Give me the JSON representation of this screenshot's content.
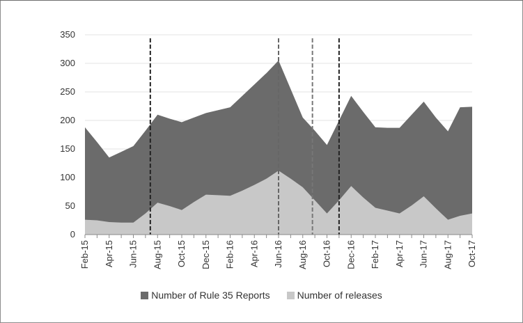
{
  "chart_data": {
    "type": "area",
    "categories": [
      "Feb-15",
      "Mar-15",
      "Apr-15",
      "May-15",
      "Jun-15",
      "Jul-15",
      "Aug-15",
      "Sep-15",
      "Oct-15",
      "Nov-15",
      "Dec-15",
      "Jan-16",
      "Feb-16",
      "Mar-16",
      "Apr-16",
      "May-16",
      "Jun-16",
      "Jul-16",
      "Aug-16",
      "Sep-16",
      "Oct-16",
      "Nov-16",
      "Dec-16",
      "Jan-17",
      "Feb-17",
      "Mar-17",
      "Apr-17",
      "May-17",
      "Jun-17",
      "Jul-17",
      "Aug-17",
      "Sep-17",
      "Oct-17"
    ],
    "tick_labels": [
      "Feb-15",
      "Apr-15",
      "Jun-15",
      "Aug-15",
      "Oct-15",
      "Dec-15",
      "Feb-16",
      "Apr-16",
      "Jun-16",
      "Aug-16",
      "Oct-16",
      "Dec-16",
      "Feb-17",
      "Apr-17",
      "Jun-17",
      "Aug-17",
      "Oct-17"
    ],
    "series": [
      {
        "name": "Number of Rule 35 Reports",
        "color": "#6b6b6b",
        "values": [
          188,
          162,
          135,
          145,
          155,
          182,
          210,
          203,
          197,
          205,
          213,
          218,
          223,
          243,
          263,
          283,
          305,
          255,
          205,
          182,
          157,
          200,
          243,
          215,
          188,
          187,
          187,
          210,
          233,
          205,
          181,
          223,
          224
        ]
      },
      {
        "name": "Number of releases",
        "color": "#c8c8c8",
        "values": [
          26,
          25,
          22,
          21,
          21,
          37,
          56,
          50,
          43,
          57,
          70,
          69,
          68,
          77,
          87,
          98,
          112,
          98,
          83,
          60,
          37,
          60,
          85,
          65,
          47,
          42,
          37,
          51,
          67,
          46,
          26,
          33,
          37
        ]
      }
    ],
    "vlines": [
      {
        "x": 5.4,
        "color": "#222222"
      },
      {
        "x": 16.0,
        "color": "#666666"
      },
      {
        "x": 18.8,
        "color": "#777777"
      },
      {
        "x": 21.0,
        "color": "#222222"
      }
    ],
    "ylim": [
      0,
      350
    ],
    "yticks": [
      0,
      50,
      100,
      150,
      200,
      250,
      300,
      350
    ],
    "grid": true,
    "legend_position": "bottom",
    "title": "",
    "xlabel": "",
    "ylabel": ""
  }
}
